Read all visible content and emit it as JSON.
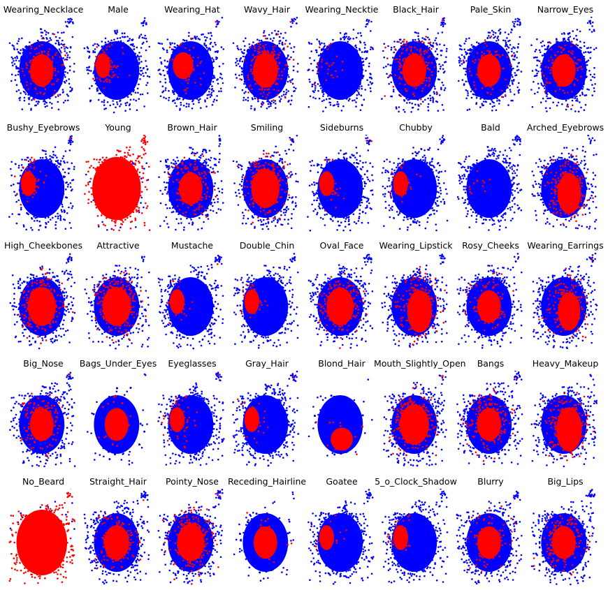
{
  "chart_data": {
    "type": "scatter",
    "description_of_encoding": "",
    "colors": {
      "positive": "#ff0000",
      "negative": "#0000ff",
      "background": "#ffffff"
    },
    "grid": false,
    "axes_visible": false,
    "panels": [
      {
        "title": "Wearing_Necklace",
        "positive_fraction": 0.3,
        "region": "center"
      },
      {
        "title": "Male",
        "positive_fraction": 0.42,
        "region": "left"
      },
      {
        "title": "Wearing_Hat",
        "positive_fraction": 0.12,
        "region": "center-left"
      },
      {
        "title": "Wavy_Hair",
        "positive_fraction": 0.55,
        "region": "center"
      },
      {
        "title": "Wearing_Necktie",
        "positive_fraction": 0.1,
        "region": "left"
      },
      {
        "title": "Black_Hair",
        "positive_fraction": 0.5,
        "region": "center"
      },
      {
        "title": "Pale_Skin",
        "positive_fraction": 0.2,
        "region": "center"
      },
      {
        "title": "Narrow_Eyes",
        "positive_fraction": 0.3,
        "region": "center"
      },
      {
        "title": "Bushy_Eyebrows",
        "positive_fraction": 0.35,
        "region": "left"
      },
      {
        "title": "Young",
        "positive_fraction": 0.85,
        "region": "all"
      },
      {
        "title": "Brown_Hair",
        "positive_fraction": 0.45,
        "region": "center"
      },
      {
        "title": "Smiling",
        "positive_fraction": 0.7,
        "region": "center"
      },
      {
        "title": "Sideburns",
        "positive_fraction": 0.12,
        "region": "left"
      },
      {
        "title": "Chubby",
        "positive_fraction": 0.15,
        "region": "left"
      },
      {
        "title": "Bald",
        "positive_fraction": 0.07,
        "region": "left"
      },
      {
        "title": "Arched_Eyebrows",
        "positive_fraction": 0.55,
        "region": "right"
      },
      {
        "title": "High_Cheekbones",
        "positive_fraction": 0.7,
        "region": "center"
      },
      {
        "title": "Attractive",
        "positive_fraction": 0.7,
        "region": "center"
      },
      {
        "title": "Mustache",
        "positive_fraction": 0.12,
        "region": "left"
      },
      {
        "title": "Double_Chin",
        "positive_fraction": 0.12,
        "region": "left"
      },
      {
        "title": "Oval_Face",
        "positive_fraction": 0.65,
        "region": "center"
      },
      {
        "title": "Wearing_Lipstick",
        "positive_fraction": 0.6,
        "region": "right"
      },
      {
        "title": "Rosy_Cheeks",
        "positive_fraction": 0.25,
        "region": "center"
      },
      {
        "title": "Wearing_Earrings",
        "positive_fraction": 0.45,
        "region": "right"
      },
      {
        "title": "Big_Nose",
        "positive_fraction": 0.5,
        "region": "center"
      },
      {
        "title": "Bags_Under_Eyes",
        "positive_fraction": 0.5,
        "region": "center"
      },
      {
        "title": "Eyeglasses",
        "positive_fraction": 0.3,
        "region": "left"
      },
      {
        "title": "Gray_Hair",
        "positive_fraction": 0.12,
        "region": "left"
      },
      {
        "title": "Blond_Hair",
        "positive_fraction": 0.35,
        "region": "bottom"
      },
      {
        "title": "Mouth_Slightly_Open",
        "positive_fraction": 0.75,
        "region": "center"
      },
      {
        "title": "Bangs",
        "positive_fraction": 0.5,
        "region": "center"
      },
      {
        "title": "Heavy_Makeup",
        "positive_fraction": 0.65,
        "region": "right"
      },
      {
        "title": "No_Beard",
        "positive_fraction": 0.92,
        "region": "all"
      },
      {
        "title": "Straight_Hair",
        "positive_fraction": 0.55,
        "region": "center"
      },
      {
        "title": "Pointy_Nose",
        "positive_fraction": 0.65,
        "region": "center"
      },
      {
        "title": "Receding_Hairline",
        "positive_fraction": 0.3,
        "region": "center"
      },
      {
        "title": "Goatee",
        "positive_fraction": 0.12,
        "region": "left"
      },
      {
        "title": "5_o_Clock_Shadow",
        "positive_fraction": 0.18,
        "region": "left"
      },
      {
        "title": "Blurry",
        "positive_fraction": 0.25,
        "region": "center"
      },
      {
        "title": "Big_Lips",
        "positive_fraction": 0.5,
        "region": "center"
      }
    ]
  }
}
